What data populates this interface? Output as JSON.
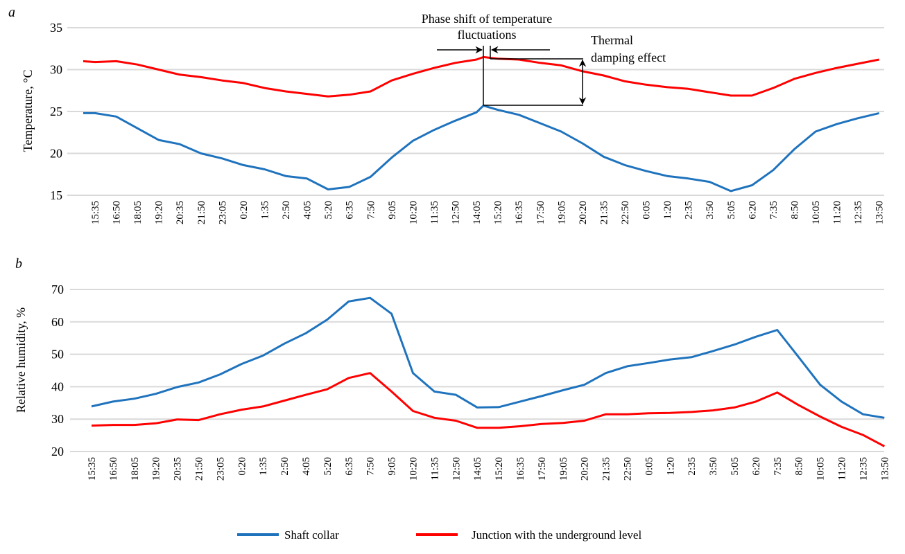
{
  "colors": {
    "shaft_collar": "#1f73bd",
    "junction": "#ff0000",
    "grid": "#d9d9d9"
  },
  "legend": [
    {
      "label": "Shaft collar",
      "series": "shaft_collar"
    },
    {
      "label": "Junction with the underground level",
      "series": "junction"
    }
  ],
  "annotations": {
    "phase_shift_line1": "Phase shift of temperature",
    "phase_shift_line2": "fluctuations",
    "damping_line1": "Thermal",
    "damping_line2": "damping effect"
  },
  "chart_data": [
    {
      "panel_label": "a",
      "type": "line",
      "ylabel": "Temperature, °C",
      "xlabel": "",
      "ylim": [
        15,
        35
      ],
      "yticks": [
        15,
        20,
        25,
        30,
        35
      ],
      "grid": true,
      "categories": [
        "15:35",
        "16:50",
        "18:05",
        "19:20",
        "20:35",
        "21:50",
        "23:05",
        "0:20",
        "1:35",
        "2:50",
        "4:05",
        "5:20",
        "6:35",
        "7:50",
        "9:05",
        "10:20",
        "11:35",
        "12:50",
        "14:05",
        "15:20",
        "16:35",
        "17:50",
        "19:05",
        "20:20",
        "21:35",
        "22:50",
        "0:05",
        "1:20",
        "2:35",
        "3:50",
        "5:05",
        "6:20",
        "7:35",
        "8:50",
        "10:05",
        "11:20",
        "12:35",
        "13:50"
      ],
      "series": [
        {
          "name": "Shaft collar",
          "key": "shaft_collar",
          "values": [
            24.8,
            24.4,
            23.0,
            21.6,
            21.1,
            20.0,
            19.4,
            18.6,
            18.1,
            17.3,
            17.0,
            15.7,
            16.0,
            17.2,
            19.5,
            21.5,
            22.8,
            23.9,
            24.9,
            25.2,
            24.6,
            23.6,
            22.6,
            21.2,
            19.6,
            18.6,
            17.9,
            17.3,
            17.0,
            16.6,
            15.5,
            16.2,
            18.0,
            20.5,
            22.6,
            23.5,
            24.2,
            24.8
          ],
          "peak": {
            "x": "14:05",
            "value": 25.7
          }
        },
        {
          "name": "Junction with the underground level",
          "key": "junction",
          "values": [
            30.9,
            31.0,
            30.6,
            30.0,
            29.4,
            29.1,
            28.7,
            28.4,
            27.8,
            27.4,
            27.1,
            26.8,
            27.0,
            27.4,
            28.7,
            29.5,
            30.2,
            30.8,
            31.2,
            31.3,
            31.2,
            30.8,
            30.5,
            29.8,
            29.3,
            28.6,
            28.2,
            27.9,
            27.7,
            27.3,
            26.9,
            26.9,
            27.8,
            28.9,
            29.6,
            30.2,
            30.7,
            31.2
          ],
          "peak": {
            "x": "14:05",
            "value": 31.5
          }
        }
      ]
    },
    {
      "panel_label": "b",
      "type": "line",
      "ylabel": "Relative humidity, %",
      "xlabel": "",
      "ylim": [
        20,
        70
      ],
      "yticks": [
        20,
        30,
        40,
        50,
        60,
        70
      ],
      "grid": true,
      "categories": [
        "15:35",
        "16:50",
        "18:05",
        "19:20",
        "20:35",
        "21:50",
        "23:05",
        "0:20",
        "1:35",
        "2:50",
        "4:05",
        "5:20",
        "6:35",
        "7:50",
        "9:05",
        "10:20",
        "11:35",
        "12:50",
        "14:05",
        "15:20",
        "16:35",
        "17:50",
        "19:05",
        "20:20",
        "21:35",
        "22:50",
        "0:05",
        "1:20",
        "2:35",
        "3:50",
        "5:05",
        "6:20",
        "7:35",
        "8:50",
        "10:05",
        "11:20",
        "12:35",
        "13:50"
      ],
      "series": [
        {
          "name": "Shaft collar",
          "key": "shaft_collar",
          "values": [
            33.9,
            35.4,
            36.3,
            37.8,
            39.9,
            41.3,
            43.8,
            47.0,
            49.6,
            53.3,
            56.5,
            60.7,
            66.3,
            67.4,
            62.5,
            44.2,
            38.5,
            37.5,
            33.6,
            33.7,
            35.4,
            37.1,
            38.9,
            40.6,
            44.2,
            46.3,
            47.3,
            48.4,
            49.1,
            51.0,
            53.0,
            55.4,
            57.5,
            49.1,
            40.6,
            35.4,
            31.5,
            30.4
          ]
        },
        {
          "name": "Junction with the underground level",
          "key": "junction",
          "values": [
            28.0,
            28.2,
            28.2,
            28.7,
            29.9,
            29.7,
            31.5,
            32.9,
            33.9,
            35.7,
            37.5,
            39.2,
            42.7,
            44.2,
            38.5,
            32.5,
            30.4,
            29.5,
            27.3,
            27.3,
            27.8,
            28.5,
            28.8,
            29.5,
            31.5,
            31.5,
            31.8,
            31.9,
            32.2,
            32.7,
            33.6,
            35.4,
            38.2,
            34.3,
            30.8,
            27.6,
            25.1,
            21.6
          ]
        }
      ]
    }
  ]
}
